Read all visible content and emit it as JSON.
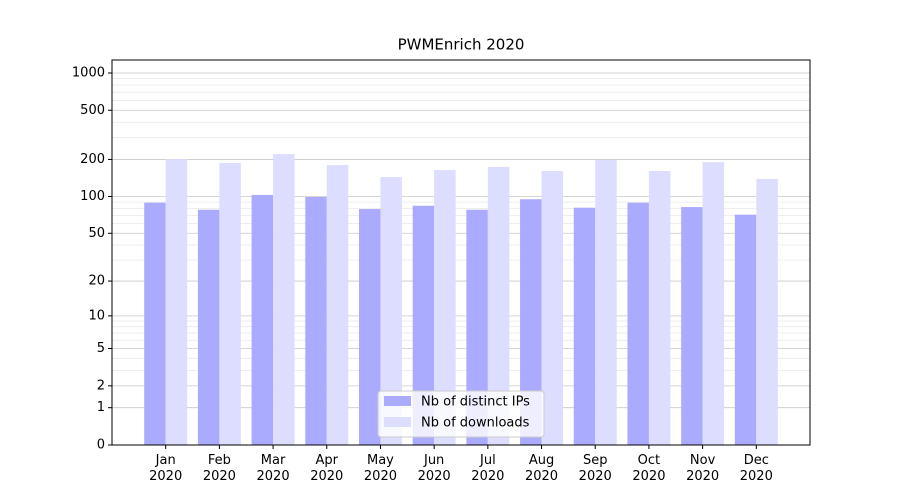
{
  "chart_data": {
    "type": "bar",
    "title": "PWMEnrich 2020",
    "categories": [
      "Jan\n2020",
      "Feb\n2020",
      "Mar\n2020",
      "Apr\n2020",
      "May\n2020",
      "Jun\n2020",
      "Jul\n2020",
      "Aug\n2020",
      "Sep\n2020",
      "Oct\n2020",
      "Nov\n2020",
      "Dec\n2020"
    ],
    "series": [
      {
        "name": "Nb of distinct IPs",
        "color": "#aaaaff",
        "values": [
          89,
          78,
          103,
          99,
          79,
          84,
          78,
          95,
          81,
          89,
          82,
          71
        ]
      },
      {
        "name": "Nb of downloads",
        "color": "#ddddff",
        "values": [
          201,
          187,
          221,
          180,
          144,
          164,
          174,
          161,
          198,
          161,
          190,
          139
        ]
      }
    ],
    "yscale": "log1p",
    "ylim": [
      0,
      1273
    ],
    "yticks": [
      0,
      1,
      2,
      5,
      10,
      20,
      50,
      100,
      200,
      500,
      1000
    ],
    "minor_yticks": [
      3,
      4,
      6,
      7,
      8,
      9,
      30,
      40,
      60,
      70,
      80,
      90,
      300,
      400,
      600,
      700,
      800,
      900
    ],
    "grid": true,
    "legend": "lower center"
  }
}
